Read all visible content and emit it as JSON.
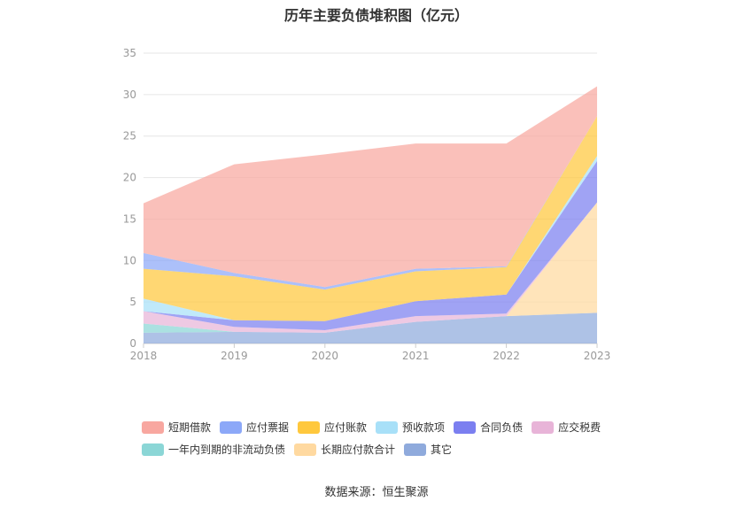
{
  "title": "历年主要负债堆积图（亿元）",
  "source": "数据来源：恒生聚源",
  "chart_data": {
    "type": "area",
    "stacked": true,
    "categories": [
      "2018",
      "2019",
      "2020",
      "2021",
      "2022",
      "2023"
    ],
    "ylim": [
      0,
      35
    ],
    "yticks": [
      0,
      5,
      10,
      15,
      20,
      25,
      30,
      35
    ],
    "grid": true,
    "legend_position": "bottom",
    "series": [
      {
        "name": "其它",
        "color": "#8FAADC",
        "values": [
          1.3,
          1.4,
          1.3,
          2.6,
          3.3,
          3.7
        ]
      },
      {
        "name": "长期应付款合计",
        "color": "#FFD9A0",
        "values": [
          0.0,
          0.0,
          0.0,
          0.0,
          0.0,
          13.3
        ]
      },
      {
        "name": "一年内到期的非流动负债",
        "color": "#8BD6D6",
        "values": [
          1.1,
          0.0,
          0.0,
          0.0,
          0.0,
          0.0
        ]
      },
      {
        "name": "应交税费",
        "color": "#E8B4D8",
        "values": [
          1.5,
          0.6,
          0.3,
          0.7,
          0.3,
          0.0
        ]
      },
      {
        "name": "合同负债",
        "color": "#7B7FF0",
        "values": [
          0.0,
          0.8,
          1.1,
          1.8,
          2.3,
          5.0
        ]
      },
      {
        "name": "预收款项",
        "color": "#A8E0F8",
        "values": [
          1.5,
          0.0,
          0.0,
          0.0,
          0.0,
          0.6
        ]
      },
      {
        "name": "应付账款",
        "color": "#FFC83D",
        "values": [
          3.6,
          5.3,
          3.8,
          3.6,
          3.3,
          4.8
        ]
      },
      {
        "name": "应付票据",
        "color": "#8CA8F8",
        "values": [
          1.9,
          0.4,
          0.3,
          0.3,
          0.1,
          0.0
        ]
      },
      {
        "name": "短期借款",
        "color": "#F8A7A0",
        "values": [
          6.0,
          13.1,
          16.0,
          15.1,
          14.8,
          3.6
        ]
      }
    ],
    "legend_order": [
      "短期借款",
      "应付票据",
      "应付账款",
      "预收款项",
      "合同负债",
      "应交税费",
      "一年内到期的非流动负债",
      "长期应付款合计",
      "其它"
    ]
  }
}
